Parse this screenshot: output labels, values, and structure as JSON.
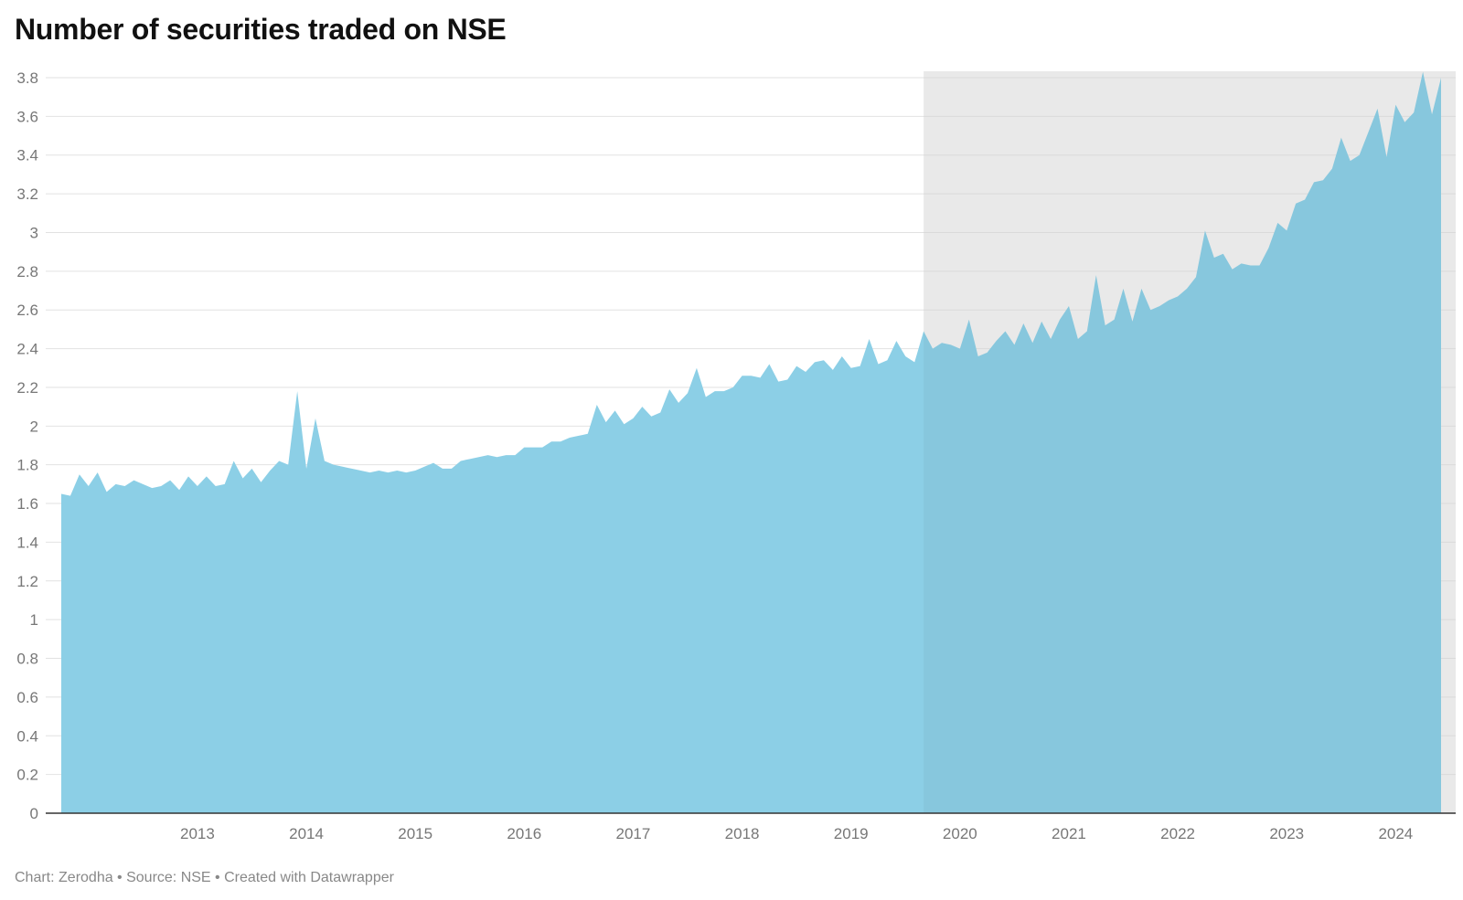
{
  "title": "Number of securities traded on NSE",
  "footer": "Chart: Zerodha • Source: NSE • Created with Datawrapper",
  "colors": {
    "area": "#8ccfe6",
    "highlight_band": "#f2f2f2",
    "gridline": "#e2e2e2",
    "baseline": "#333333"
  },
  "chart_data": {
    "type": "area",
    "title": "Number of securities traded on NSE",
    "xlabel": "",
    "ylabel": "",
    "ylim": [
      0,
      3.8
    ],
    "xlim": [
      "2012-04",
      "2024-12"
    ],
    "grid": true,
    "y_ticks": [
      0,
      0.2,
      0.4,
      0.6,
      0.8,
      1,
      1.2,
      1.4,
      1.6,
      1.8,
      2,
      2.2,
      2.4,
      2.6,
      2.8,
      3,
      3.2,
      3.4,
      3.6,
      3.8
    ],
    "x_ticks": [
      "2013",
      "2014",
      "2015",
      "2016",
      "2017",
      "2018",
      "2019",
      "2020",
      "2021",
      "2022",
      "2023",
      "2024"
    ],
    "highlight_range": [
      "2020-03",
      "2024-12"
    ],
    "series": [
      {
        "x": [
          "2012-04",
          "2012-05",
          "2012-06",
          "2012-07",
          "2012-08",
          "2012-09",
          "2012-10",
          "2012-11",
          "2012-12",
          "2013-01",
          "2013-02",
          "2013-03",
          "2013-04",
          "2013-05",
          "2013-06",
          "2013-07",
          "2013-08",
          "2013-09",
          "2013-10",
          "2013-11",
          "2013-12",
          "2014-01",
          "2014-02",
          "2014-03",
          "2014-04",
          "2014-05",
          "2014-06",
          "2014-07",
          "2014-08",
          "2014-09",
          "2014-10",
          "2014-11",
          "2014-12",
          "2015-01",
          "2015-02",
          "2015-03",
          "2015-04",
          "2015-05",
          "2015-06",
          "2015-07",
          "2015-08",
          "2015-09",
          "2015-10",
          "2015-11",
          "2015-12",
          "2016-01",
          "2016-02",
          "2016-03",
          "2016-04",
          "2016-05",
          "2016-06",
          "2016-07",
          "2016-08",
          "2016-09",
          "2016-10",
          "2016-11",
          "2016-12",
          "2017-01",
          "2017-02",
          "2017-03",
          "2017-04",
          "2017-05",
          "2017-06",
          "2017-07",
          "2017-08",
          "2017-09",
          "2017-10",
          "2017-11",
          "2017-12",
          "2018-01",
          "2018-02",
          "2018-03",
          "2018-04",
          "2018-05",
          "2018-06",
          "2018-07",
          "2018-08",
          "2018-09",
          "2018-10",
          "2018-11",
          "2018-12",
          "2019-01",
          "2019-02",
          "2019-03",
          "2019-04",
          "2019-05",
          "2019-06",
          "2019-07",
          "2019-08",
          "2019-09",
          "2019-10",
          "2019-11",
          "2019-12",
          "2020-01",
          "2020-02",
          "2020-03",
          "2020-04",
          "2020-05",
          "2020-06",
          "2020-07",
          "2020-08",
          "2020-09",
          "2020-10",
          "2020-11",
          "2020-12",
          "2021-01",
          "2021-02",
          "2021-03",
          "2021-04",
          "2021-05",
          "2021-06",
          "2021-07",
          "2021-08",
          "2021-09",
          "2021-10",
          "2021-11",
          "2021-12",
          "2022-01",
          "2022-02",
          "2022-03",
          "2022-04",
          "2022-05",
          "2022-06",
          "2022-07",
          "2022-08",
          "2022-09",
          "2022-10",
          "2022-11",
          "2022-12",
          "2023-01",
          "2023-02",
          "2023-03",
          "2023-04",
          "2023-05",
          "2023-06",
          "2023-07",
          "2023-08",
          "2023-09",
          "2023-10",
          "2023-11",
          "2023-12",
          "2024-01",
          "2024-02",
          "2024-03",
          "2024-04",
          "2024-05",
          "2024-06",
          "2024-07",
          "2024-08",
          "2024-09",
          "2024-10",
          "2024-11",
          "2024-12"
        ],
        "values": [
          1.65,
          1.64,
          1.75,
          1.69,
          1.76,
          1.66,
          1.7,
          1.69,
          1.72,
          1.7,
          1.68,
          1.69,
          1.72,
          1.67,
          1.74,
          1.69,
          1.74,
          1.69,
          1.7,
          1.82,
          1.73,
          1.78,
          1.71,
          1.77,
          1.82,
          1.8,
          2.18,
          1.78,
          2.04,
          1.82,
          1.8,
          1.79,
          1.78,
          1.77,
          1.76,
          1.77,
          1.76,
          1.77,
          1.76,
          1.77,
          1.79,
          1.81,
          1.78,
          1.78,
          1.82,
          1.83,
          1.84,
          1.85,
          1.84,
          1.85,
          1.85,
          1.89,
          1.89,
          1.89,
          1.92,
          1.92,
          1.94,
          1.95,
          1.96,
          2.11,
          2.02,
          2.08,
          2.01,
          2.04,
          2.1,
          2.05,
          2.07,
          2.19,
          2.12,
          2.17,
          2.3,
          2.15,
          2.18,
          2.18,
          2.2,
          2.26,
          2.26,
          2.25,
          2.32,
          2.23,
          2.24,
          2.31,
          2.28,
          2.33,
          2.34,
          2.29,
          2.36,
          2.3,
          2.31,
          2.45,
          2.32,
          2.34,
          2.44,
          2.36,
          2.33,
          2.49,
          2.4,
          2.43,
          2.42,
          2.4,
          2.55,
          2.36,
          2.38,
          2.44,
          2.49,
          2.42,
          2.53,
          2.43,
          2.54,
          2.45,
          2.55,
          2.62,
          2.45,
          2.49,
          2.78,
          2.52,
          2.55,
          2.71,
          2.54,
          2.71,
          2.6,
          2.62,
          2.65,
          2.67,
          2.71,
          2.77,
          3.01,
          2.87,
          2.89,
          2.81,
          2.84,
          2.83,
          2.83,
          2.92,
          3.05,
          3.01,
          3.15,
          3.17,
          3.26,
          3.27,
          3.33,
          3.49,
          3.37,
          3.4,
          3.52,
          3.64,
          3.39,
          3.66,
          3.57,
          3.62,
          3.83,
          3.61,
          3.8
        ]
      }
    ]
  }
}
